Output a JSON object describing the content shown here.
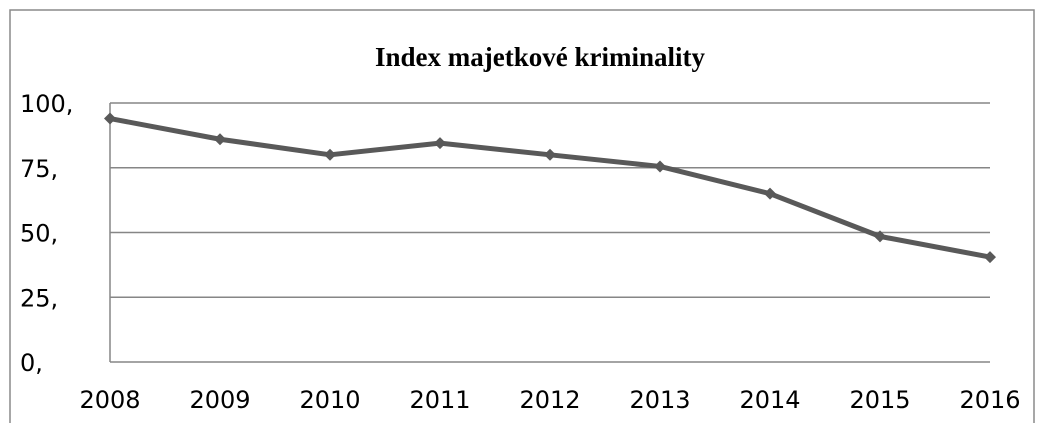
{
  "chart_data": {
    "type": "line",
    "title": "Index majetkové kriminality",
    "categories": [
      "2008",
      "2009",
      "2010",
      "2011",
      "2012",
      "2013",
      "2014",
      "2015",
      "2016"
    ],
    "values": [
      94,
      86,
      80,
      84.5,
      80,
      75.5,
      65,
      48.5,
      40.5
    ],
    "color": "#595959",
    "ylim": [
      0,
      100
    ],
    "yticks": [
      {
        "value": 0,
        "label": "0,"
      },
      {
        "value": 25,
        "label": "25,"
      },
      {
        "value": 50,
        "label": "50,"
      },
      {
        "value": 75,
        "label": "75,"
      },
      {
        "value": 100,
        "label": "100,"
      }
    ],
    "grid": true
  }
}
